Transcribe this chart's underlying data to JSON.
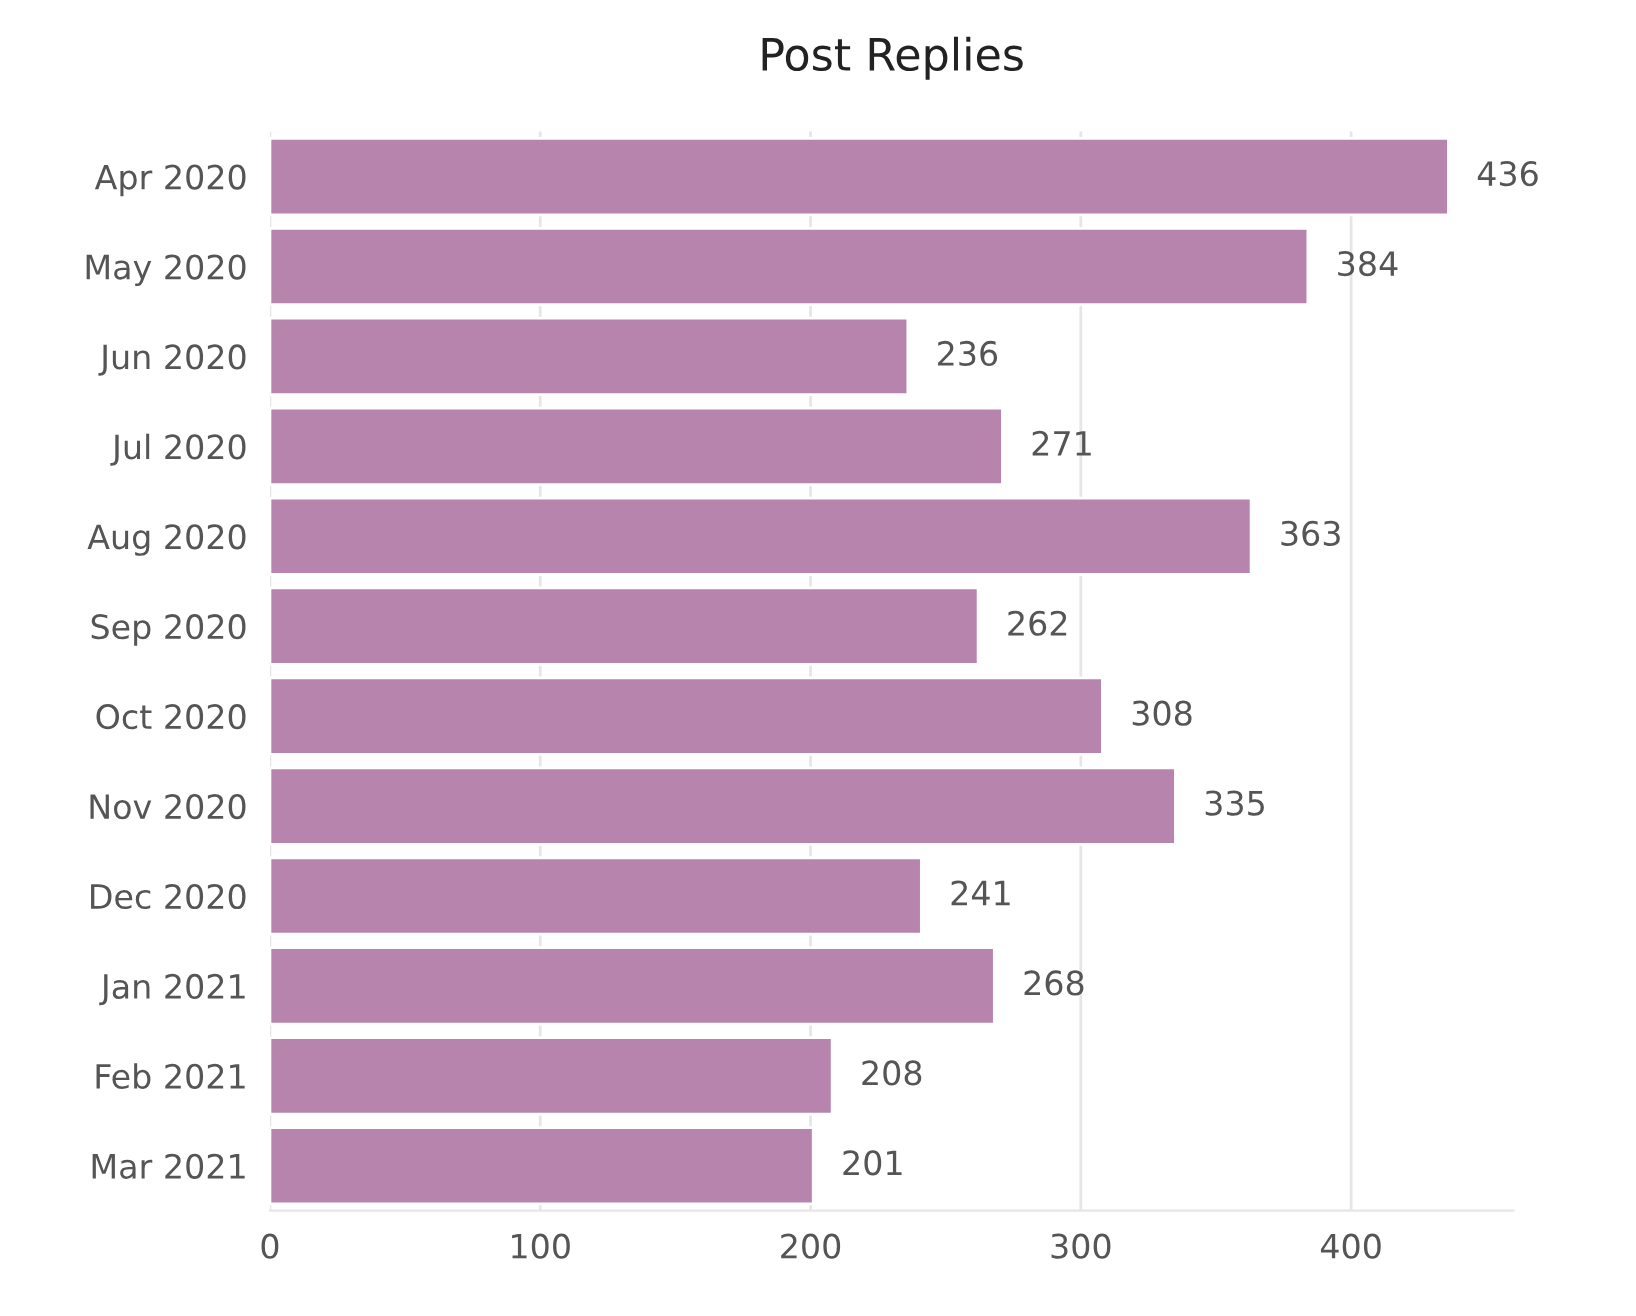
{
  "chart_data": {
    "type": "bar",
    "orientation": "horizontal",
    "title": "Post Replies",
    "categories": [
      "Apr 2020",
      "May 2020",
      "Jun 2020",
      "Jul 2020",
      "Aug 2020",
      "Sep 2020",
      "Oct 2020",
      "Nov 2020",
      "Dec 2020",
      "Jan 2021",
      "Feb 2021",
      "Mar 2021"
    ],
    "values": [
      436,
      384,
      236,
      271,
      363,
      262,
      308,
      335,
      241,
      268,
      208,
      201
    ],
    "color": "#b784ad",
    "xlim": [
      0,
      460
    ],
    "xticks": [
      0,
      100,
      200,
      300,
      400
    ],
    "grid": "x",
    "data_labels": true
  }
}
